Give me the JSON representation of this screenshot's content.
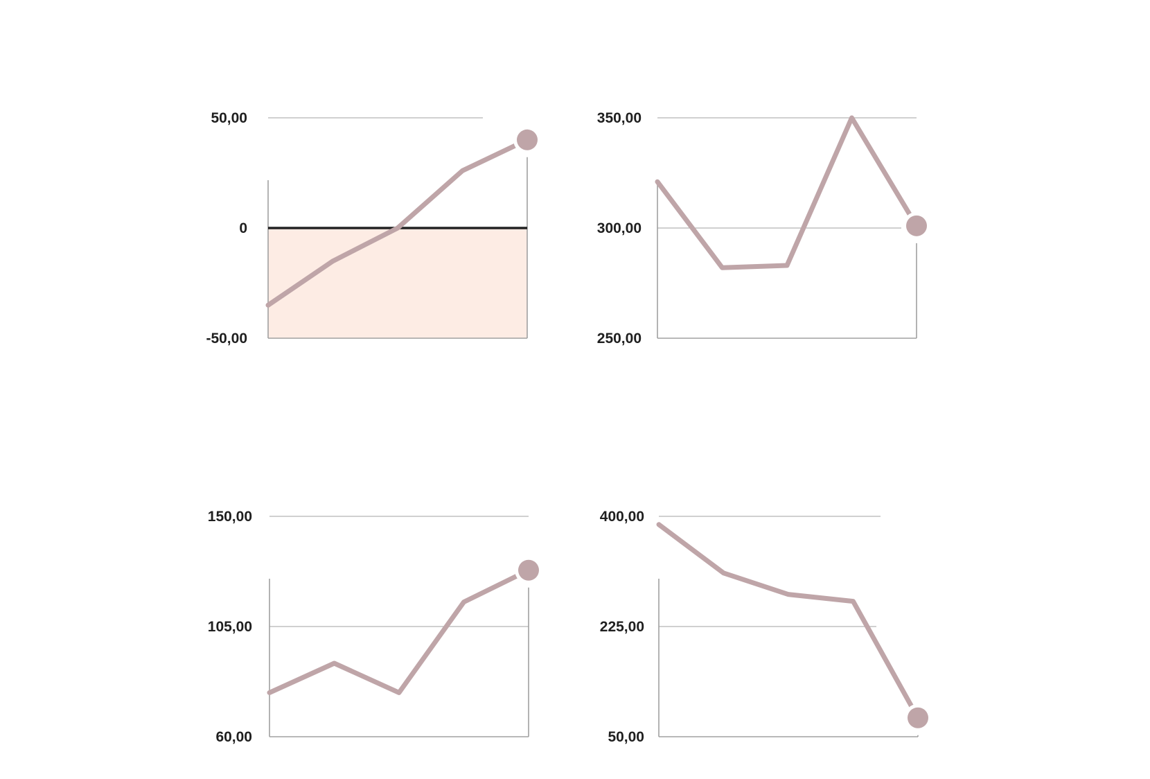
{
  "chart_data": [
    {
      "type": "line",
      "x": [
        1,
        2,
        3,
        4,
        5
      ],
      "series": [
        {
          "values": [
            -35,
            -15,
            0,
            26,
            40
          ]
        }
      ],
      "ylim": [
        -50,
        50
      ],
      "y_ticks": [
        "50,00",
        "0",
        "-50,00"
      ],
      "y_tick_values": [
        50,
        0,
        -50
      ],
      "negative_fill": "#fdece4",
      "zero_line": true,
      "end_marker": true,
      "grid": true
    },
    {
      "type": "line",
      "x": [
        1,
        2,
        3,
        4,
        5
      ],
      "series": [
        {
          "values": [
            321,
            282,
            283,
            350,
            301
          ]
        }
      ],
      "ylim": [
        250,
        350
      ],
      "y_ticks": [
        "350,00",
        "300,00",
        "250,00"
      ],
      "y_tick_values": [
        350,
        300,
        250
      ],
      "end_marker": true,
      "grid": true
    },
    {
      "type": "line",
      "x": [
        1,
        2,
        3,
        4,
        5
      ],
      "series": [
        {
          "values": [
            78,
            90,
            78,
            115,
            128
          ]
        }
      ],
      "ylim": [
        60,
        150
      ],
      "y_ticks": [
        "150,00",
        "105,00",
        "60,00"
      ],
      "y_tick_values": [
        150,
        105,
        60
      ],
      "end_marker": true,
      "grid": true
    },
    {
      "type": "line",
      "x": [
        1,
        2,
        3,
        4,
        5
      ],
      "series": [
        {
          "values": [
            387,
            310,
            276,
            265,
            80
          ]
        }
      ],
      "ylim": [
        50,
        400
      ],
      "y_ticks": [
        "400,00",
        "225,00",
        "50,00"
      ],
      "y_tick_values": [
        400,
        225,
        50
      ],
      "end_marker": true,
      "grid": true
    }
  ],
  "colors": {
    "line": "#bfa5a8",
    "grid": "#b3b3b3",
    "axis": "#a0a0a0",
    "zero_line": "#222222",
    "negative_fill": "#fdece4",
    "text": "#1f1f1f"
  }
}
